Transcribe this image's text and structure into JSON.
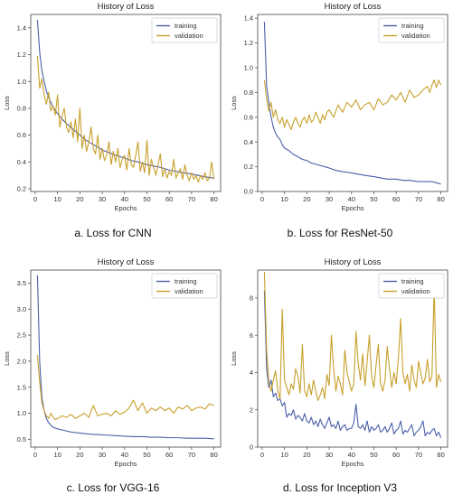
{
  "chart_data": [
    {
      "type": "line",
      "id": "cnn",
      "title": "History of Loss",
      "xlabel": "Epochs",
      "ylabel": "Loss",
      "caption": "a. Loss for CNN",
      "xlim": [
        -2,
        83
      ],
      "ylim": [
        0.18,
        1.5
      ],
      "xticks": [
        0,
        10,
        20,
        30,
        40,
        50,
        60,
        70,
        80
      ],
      "yticks": [
        0.2,
        0.4,
        0.6,
        0.8,
        1.0,
        1.2,
        1.4
      ],
      "ytick_labels": [
        "0.2",
        "0.4",
        "0.6",
        "0.8",
        "1.0",
        "1.2",
        "1.4"
      ],
      "legend": "top-right",
      "grid": false,
      "series": [
        {
          "name": "training",
          "color": "#4c5fa8",
          "x": [
            1,
            2,
            3,
            4,
            5,
            6,
            8,
            10,
            12,
            15,
            18,
            20,
            22,
            25,
            28,
            30,
            33,
            36,
            40,
            43,
            46,
            50,
            53,
            56,
            60,
            63,
            66,
            70,
            73,
            76,
            80
          ],
          "y": [
            1.46,
            1.22,
            1.08,
            1.0,
            0.93,
            0.88,
            0.81,
            0.76,
            0.72,
            0.67,
            0.63,
            0.6,
            0.57,
            0.54,
            0.51,
            0.49,
            0.47,
            0.45,
            0.43,
            0.41,
            0.4,
            0.38,
            0.37,
            0.36,
            0.34,
            0.33,
            0.32,
            0.31,
            0.3,
            0.29,
            0.28
          ]
        },
        {
          "name": "validation",
          "color": "#c8a02c",
          "x": [
            1,
            2,
            3,
            4,
            5,
            6,
            7,
            8,
            9,
            10,
            11,
            12,
            13,
            14,
            15,
            16,
            17,
            18,
            19,
            20,
            21,
            22,
            23,
            24,
            25,
            26,
            27,
            28,
            29,
            30,
            31,
            32,
            33,
            34,
            35,
            36,
            37,
            38,
            39,
            40,
            41,
            42,
            43,
            44,
            45,
            46,
            47,
            48,
            49,
            50,
            51,
            52,
            53,
            54,
            55,
            56,
            57,
            58,
            59,
            60,
            61,
            62,
            63,
            64,
            65,
            66,
            67,
            68,
            69,
            70,
            71,
            72,
            73,
            74,
            75,
            76,
            77,
            78,
            79,
            80
          ],
          "y": [
            1.19,
            0.95,
            1.02,
            0.9,
            0.83,
            0.92,
            0.78,
            0.82,
            0.75,
            0.9,
            0.66,
            0.74,
            0.8,
            0.66,
            0.62,
            0.7,
            0.58,
            0.72,
            0.55,
            0.8,
            0.5,
            0.6,
            0.48,
            0.55,
            0.66,
            0.5,
            0.46,
            0.6,
            0.42,
            0.5,
            0.41,
            0.45,
            0.55,
            0.38,
            0.48,
            0.4,
            0.5,
            0.36,
            0.42,
            0.45,
            0.34,
            0.5,
            0.38,
            0.36,
            0.45,
            0.55,
            0.33,
            0.4,
            0.32,
            0.56,
            0.3,
            0.42,
            0.36,
            0.3,
            0.38,
            0.46,
            0.29,
            0.35,
            0.28,
            0.33,
            0.3,
            0.42,
            0.28,
            0.32,
            0.35,
            0.27,
            0.38,
            0.3,
            0.26,
            0.32,
            0.27,
            0.3,
            0.25,
            0.3,
            0.27,
            0.32,
            0.26,
            0.28,
            0.4,
            0.27
          ]
        }
      ]
    },
    {
      "type": "line",
      "id": "resnet50",
      "title": "History of Loss",
      "xlabel": "Epochs",
      "ylabel": "Loss",
      "caption": "b. Loss for ResNet-50",
      "xlim": [
        -2,
        83
      ],
      "ylim": [
        0,
        1.43
      ],
      "xticks": [
        0,
        10,
        20,
        30,
        40,
        50,
        60,
        70,
        80
      ],
      "yticks": [
        0.0,
        0.2,
        0.4,
        0.6,
        0.8,
        1.0,
        1.2,
        1.4
      ],
      "ytick_labels": [
        "0.0",
        "0.2",
        "0.4",
        "0.6",
        "0.8",
        "1.0",
        "1.2",
        "1.4"
      ],
      "legend": "top-right",
      "grid": false,
      "series": [
        {
          "name": "training",
          "color": "#4c5fa8",
          "x": [
            1,
            2,
            3,
            4,
            5,
            6,
            7,
            8,
            9,
            10,
            12,
            14,
            16,
            18,
            20,
            22,
            24,
            26,
            28,
            30,
            33,
            36,
            40,
            43,
            46,
            50,
            53,
            56,
            60,
            63,
            66,
            70,
            73,
            76,
            78,
            80
          ],
          "y": [
            1.37,
            0.85,
            0.72,
            0.6,
            0.52,
            0.47,
            0.44,
            0.42,
            0.38,
            0.35,
            0.33,
            0.3,
            0.28,
            0.26,
            0.25,
            0.23,
            0.22,
            0.21,
            0.2,
            0.19,
            0.17,
            0.16,
            0.15,
            0.14,
            0.13,
            0.12,
            0.11,
            0.1,
            0.1,
            0.09,
            0.09,
            0.08,
            0.08,
            0.08,
            0.07,
            0.06
          ]
        },
        {
          "name": "validation",
          "color": "#c8a02c",
          "x": [
            1,
            2,
            3,
            4,
            5,
            6,
            7,
            8,
            9,
            10,
            11,
            12,
            13,
            14,
            15,
            16,
            17,
            18,
            19,
            20,
            21,
            22,
            23,
            24,
            25,
            26,
            27,
            28,
            29,
            30,
            32,
            34,
            36,
            38,
            40,
            42,
            44,
            46,
            48,
            50,
            52,
            54,
            56,
            58,
            60,
            62,
            64,
            66,
            68,
            70,
            72,
            74,
            75,
            76,
            77,
            78,
            79,
            80
          ],
          "y": [
            0.9,
            0.75,
            0.65,
            0.72,
            0.6,
            0.66,
            0.58,
            0.55,
            0.6,
            0.52,
            0.58,
            0.54,
            0.5,
            0.56,
            0.6,
            0.55,
            0.52,
            0.58,
            0.6,
            0.55,
            0.62,
            0.56,
            0.58,
            0.64,
            0.6,
            0.55,
            0.62,
            0.58,
            0.64,
            0.66,
            0.6,
            0.7,
            0.64,
            0.72,
            0.68,
            0.74,
            0.66,
            0.7,
            0.72,
            0.66,
            0.75,
            0.7,
            0.72,
            0.78,
            0.74,
            0.8,
            0.72,
            0.82,
            0.76,
            0.78,
            0.82,
            0.85,
            0.8,
            0.86,
            0.9,
            0.84,
            0.9,
            0.86
          ]
        }
      ]
    },
    {
      "type": "line",
      "id": "vgg16",
      "title": "History of Loss",
      "xlabel": "Epochs",
      "ylabel": "Loss",
      "caption": "c. Loss for VGG-16",
      "xlim": [
        -2,
        83
      ],
      "ylim": [
        0.35,
        3.75
      ],
      "xticks": [
        0,
        10,
        20,
        30,
        40,
        50,
        60,
        70,
        80
      ],
      "yticks": [
        0.5,
        1.0,
        1.5,
        2.0,
        2.5,
        3.0,
        3.5
      ],
      "ytick_labels": [
        "0.5",
        "1.0",
        "1.5",
        "2.0",
        "2.5",
        "3.0",
        "3.5"
      ],
      "legend": "top-right",
      "grid": false,
      "series": [
        {
          "name": "training",
          "color": "#4c5fa8",
          "x": [
            1,
            2,
            3,
            4,
            5,
            6,
            7,
            8,
            10,
            12,
            14,
            16,
            18,
            20,
            24,
            28,
            32,
            36,
            40,
            44,
            48,
            52,
            56,
            60,
            64,
            68,
            72,
            76,
            80
          ],
          "y": [
            3.65,
            2.0,
            1.3,
            1.05,
            0.9,
            0.82,
            0.77,
            0.73,
            0.7,
            0.68,
            0.66,
            0.64,
            0.63,
            0.62,
            0.6,
            0.59,
            0.58,
            0.57,
            0.56,
            0.55,
            0.55,
            0.54,
            0.54,
            0.53,
            0.53,
            0.52,
            0.52,
            0.52,
            0.51
          ]
        },
        {
          "name": "validation",
          "color": "#c8a02c",
          "x": [
            1,
            2,
            3,
            4,
            5,
            6,
            7,
            8,
            9,
            10,
            12,
            14,
            16,
            18,
            20,
            22,
            24,
            26,
            28,
            30,
            32,
            34,
            36,
            38,
            40,
            42,
            44,
            46,
            48,
            50,
            52,
            54,
            56,
            58,
            60,
            62,
            64,
            66,
            68,
            70,
            72,
            74,
            76,
            78,
            80
          ],
          "y": [
            2.12,
            1.6,
            1.2,
            1.05,
            0.95,
            0.9,
            1.0,
            0.92,
            0.88,
            0.9,
            0.95,
            0.92,
            0.98,
            0.9,
            0.95,
            1.0,
            0.92,
            1.15,
            0.95,
            0.98,
            1.0,
            0.95,
            1.05,
            0.98,
            1.02,
            1.1,
            1.25,
            1.05,
            1.2,
            1.0,
            1.1,
            1.05,
            1.12,
            1.05,
            1.1,
            1.0,
            1.12,
            1.08,
            1.15,
            1.05,
            1.1,
            1.12,
            1.08,
            1.18,
            1.15
          ]
        }
      ]
    },
    {
      "type": "line",
      "id": "inceptionv3",
      "title": "History of Loss",
      "xlabel": "Epochs",
      "ylabel": "Loss",
      "caption": "d. Loss for Inception V3",
      "xlim": [
        -2,
        83
      ],
      "ylim": [
        0,
        9.5
      ],
      "xticks": [
        0,
        10,
        20,
        30,
        40,
        50,
        60,
        70,
        80
      ],
      "yticks": [
        0,
        2,
        4,
        6,
        8
      ],
      "ytick_labels": [
        "0",
        "2",
        "4",
        "6",
        "8"
      ],
      "legend": "top-right",
      "grid": false,
      "series": [
        {
          "name": "training",
          "color": "#4c5fa8",
          "x": [
            1,
            2,
            3,
            4,
            5,
            6,
            7,
            8,
            9,
            10,
            11,
            12,
            13,
            14,
            15,
            16,
            17,
            18,
            19,
            20,
            21,
            22,
            23,
            24,
            25,
            26,
            27,
            28,
            29,
            30,
            31,
            32,
            33,
            34,
            35,
            36,
            37,
            38,
            39,
            40,
            41,
            42,
            43,
            44,
            45,
            46,
            47,
            48,
            49,
            50,
            51,
            52,
            53,
            54,
            55,
            56,
            57,
            58,
            59,
            60,
            61,
            62,
            63,
            64,
            65,
            66,
            67,
            68,
            69,
            70,
            71,
            72,
            73,
            74,
            75,
            76,
            77,
            78,
            79,
            80
          ],
          "y": [
            8.4,
            4.2,
            3.2,
            3.6,
            2.7,
            2.9,
            2.5,
            2.6,
            2.2,
            2.4,
            1.6,
            1.8,
            1.7,
            2.0,
            1.5,
            1.7,
            1.6,
            1.4,
            1.8,
            1.4,
            1.3,
            1.6,
            1.2,
            1.4,
            1.1,
            1.5,
            1.2,
            1.0,
            1.3,
            1.6,
            1.1,
            1.2,
            1.0,
            1.4,
            0.9,
            1.1,
            1.2,
            0.9,
            1.0,
            1.0,
            1.3,
            2.3,
            1.1,
            1.0,
            1.2,
            0.9,
            1.4,
            0.8,
            1.1,
            0.9,
            1.0,
            1.2,
            0.8,
            0.9,
            1.1,
            0.8,
            1.0,
            1.3,
            0.7,
            0.9,
            1.0,
            1.4,
            0.7,
            0.9,
            0.8,
            1.0,
            1.2,
            0.6,
            0.8,
            0.9,
            1.1,
            1.4,
            0.6,
            0.8,
            0.7,
            0.9,
            1.0,
            0.6,
            0.8,
            0.5
          ]
        },
        {
          "name": "validation",
          "color": "#c8a02c",
          "x": [
            1,
            2,
            3,
            4,
            5,
            6,
            7,
            8,
            9,
            10,
            11,
            12,
            13,
            14,
            15,
            16,
            17,
            18,
            19,
            20,
            21,
            22,
            23,
            24,
            25,
            26,
            27,
            28,
            29,
            30,
            31,
            32,
            33,
            34,
            35,
            36,
            37,
            38,
            39,
            40,
            41,
            42,
            43,
            44,
            45,
            46,
            47,
            48,
            49,
            50,
            51,
            52,
            53,
            54,
            55,
            56,
            57,
            58,
            59,
            60,
            61,
            62,
            63,
            64,
            65,
            66,
            67,
            68,
            69,
            70,
            71,
            72,
            73,
            74,
            75,
            76,
            77,
            78,
            79,
            80
          ],
          "y": [
            9.4,
            5.2,
            3.5,
            3.0,
            3.6,
            4.1,
            3.0,
            2.6,
            7.4,
            3.6,
            3.2,
            2.8,
            3.4,
            3.1,
            4.2,
            3.8,
            2.9,
            5.5,
            3.0,
            2.7,
            3.4,
            2.8,
            3.6,
            3.0,
            2.5,
            2.8,
            3.2,
            2.6,
            3.9,
            3.3,
            6.0,
            4.2,
            3.0,
            3.8,
            3.4,
            2.8,
            5.2,
            4.0,
            3.5,
            3.0,
            3.4,
            6.2,
            4.5,
            3.6,
            5.0,
            3.3,
            4.6,
            6.0,
            3.8,
            3.2,
            4.4,
            5.5,
            3.4,
            3.0,
            3.6,
            5.4,
            4.2,
            3.2,
            4.0,
            3.4,
            4.8,
            6.9,
            4.0,
            3.4,
            3.9,
            3.0,
            4.4,
            3.6,
            3.2,
            4.6,
            4.0,
            3.4,
            3.7,
            4.7,
            3.5,
            3.8,
            8.6,
            3.2,
            3.9,
            3.5
          ]
        }
      ]
    }
  ]
}
